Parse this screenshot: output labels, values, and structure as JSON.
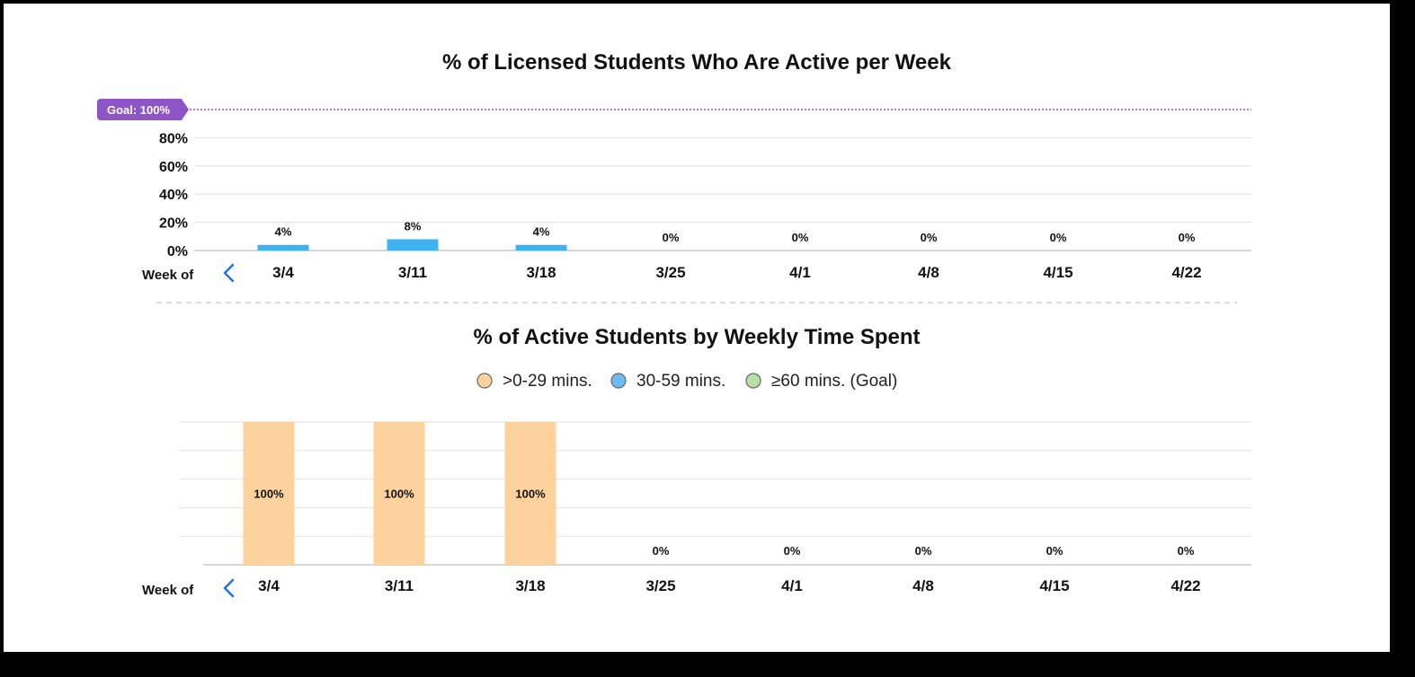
{
  "colors": {
    "active_bar": "#3fb3f2",
    "goal": "#8e55c8",
    "bucket_0_29": "#fed29c",
    "bucket_30_59": "#6bbcf0",
    "bucket_60_plus": "#b8e0a2",
    "grid": "#e3e3e3",
    "axis": "#c9c9c9",
    "nav_arrow": "#1f74e0"
  },
  "chart_data": [
    {
      "type": "bar",
      "title": "% of Licensed Students Who Are Active per Week",
      "xlabel": "Week of",
      "categories": [
        "3/4",
        "3/11",
        "3/18",
        "3/25",
        "4/1",
        "4/8",
        "4/15",
        "4/22"
      ],
      "values": [
        4,
        8,
        4,
        0,
        0,
        0,
        0,
        0
      ],
      "data_labels": [
        "4%",
        "8%",
        "4%",
        "0%",
        "0%",
        "0%",
        "0%",
        "0%"
      ],
      "ylim": [
        0,
        100
      ],
      "yticks": [
        0,
        20,
        40,
        60,
        80
      ],
      "ytick_labels": [
        "0%",
        "20%",
        "40%",
        "60%",
        "80%"
      ],
      "goal": {
        "value": 100,
        "label": "Goal: 100%"
      },
      "grid": true
    },
    {
      "type": "bar",
      "stacked": true,
      "title": "% of Active Students by Weekly Time Spent",
      "xlabel": "Week of",
      "categories": [
        "3/4",
        "3/11",
        "3/18",
        "3/25",
        "4/1",
        "4/8",
        "4/15",
        "4/22"
      ],
      "ylim": [
        0,
        100
      ],
      "legend_position": "top-center",
      "grid": true,
      "series": [
        {
          "name": ">0-29 mins.",
          "values": [
            100,
            100,
            100,
            0,
            0,
            0,
            0,
            0
          ],
          "color": "#fed29c"
        },
        {
          "name": "30-59 mins.",
          "values": [
            0,
            0,
            0,
            0,
            0,
            0,
            0,
            0
          ],
          "color": "#6bbcf0"
        },
        {
          "name": "≥60 mins. (Goal)",
          "values": [
            0,
            0,
            0,
            0,
            0,
            0,
            0,
            0
          ],
          "color": "#b8e0a2"
        }
      ],
      "data_labels": [
        "100%",
        "100%",
        "100%",
        "0%",
        "0%",
        "0%",
        "0%",
        "0%"
      ]
    }
  ]
}
